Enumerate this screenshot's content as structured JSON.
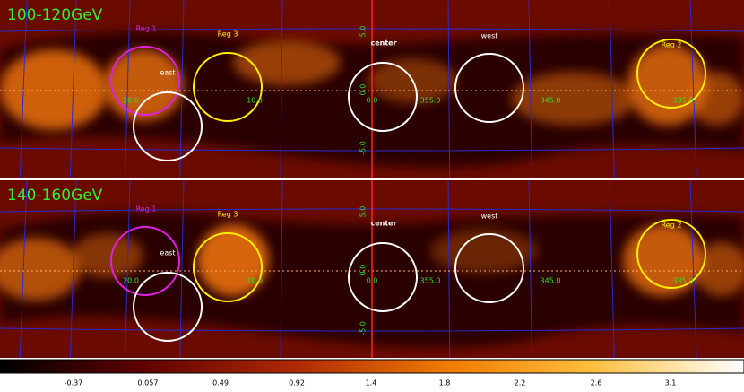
{
  "panels": [
    {
      "title": "100-120GeV",
      "regions": [
        "Reg 1",
        "Reg 3",
        "east",
        "center",
        "west",
        "Reg 2"
      ],
      "longitudes": [
        "20.0",
        "10.0",
        "0.0",
        "355.0",
        "345.0",
        "335.0"
      ],
      "latitudes": [
        "5.0",
        "0.0",
        "-5.0"
      ]
    },
    {
      "title": "140-160GeV",
      "regions": [
        "Reg 1",
        "Reg 3",
        "east",
        "center",
        "west",
        "Reg 2"
      ],
      "longitudes": [
        "20.0",
        "10.0",
        "0.0",
        "355.0",
        "345.0",
        "335.0"
      ],
      "latitudes": [
        "5.0",
        "0.0",
        "-5.0"
      ]
    }
  ],
  "colorbar": {
    "ticks": [
      "-0.37",
      "0.057",
      "0.49",
      "0.92",
      "1.4",
      "1.8",
      "2.2",
      "2.6",
      "3.1"
    ]
  }
}
